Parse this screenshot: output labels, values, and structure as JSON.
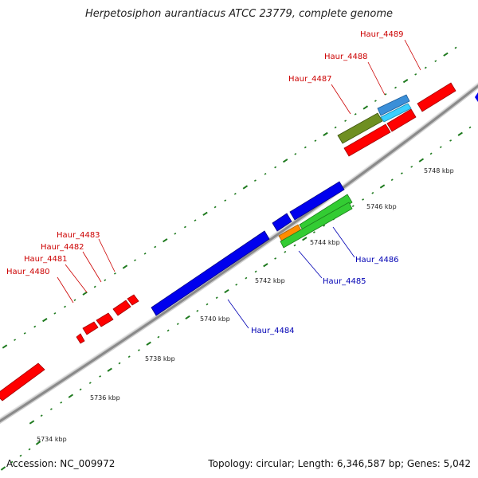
{
  "title": "Herpetosiphon aurantiacus ATCC 23779, complete genome",
  "footer": {
    "accession": "Accession: NC_009972",
    "topology": "Topology: circular",
    "length": "Length: 6,346,587 bp",
    "genes": "Genes: 5,042",
    "separator": "; "
  },
  "colors": {
    "backbone": "#909090",
    "forward_gene": "#ff0000",
    "reverse_gene": "#0000ee",
    "tick": "#1e7a1e",
    "label_red": "#cc0000",
    "label_blue": "#0000b4"
  },
  "scale_labels": [
    "5734 kbp",
    "5736 kbp",
    "5738 kbp",
    "5740 kbp",
    "5742 kbp",
    "5744 kbp",
    "5746 kbp",
    "5748 kbp"
  ],
  "gene_labels": [
    {
      "name": "Haur_4480",
      "strand": "forward"
    },
    {
      "name": "Haur_4481",
      "strand": "forward"
    },
    {
      "name": "Haur_4482",
      "strand": "forward"
    },
    {
      "name": "Haur_4483",
      "strand": "forward"
    },
    {
      "name": "Haur_4484",
      "strand": "reverse"
    },
    {
      "name": "Haur_4485",
      "strand": "reverse"
    },
    {
      "name": "Haur_4486",
      "strand": "reverse"
    },
    {
      "name": "Haur_4487",
      "strand": "forward"
    },
    {
      "name": "Haur_4488",
      "strand": "forward"
    },
    {
      "name": "Haur_4489",
      "strand": "forward"
    }
  ]
}
